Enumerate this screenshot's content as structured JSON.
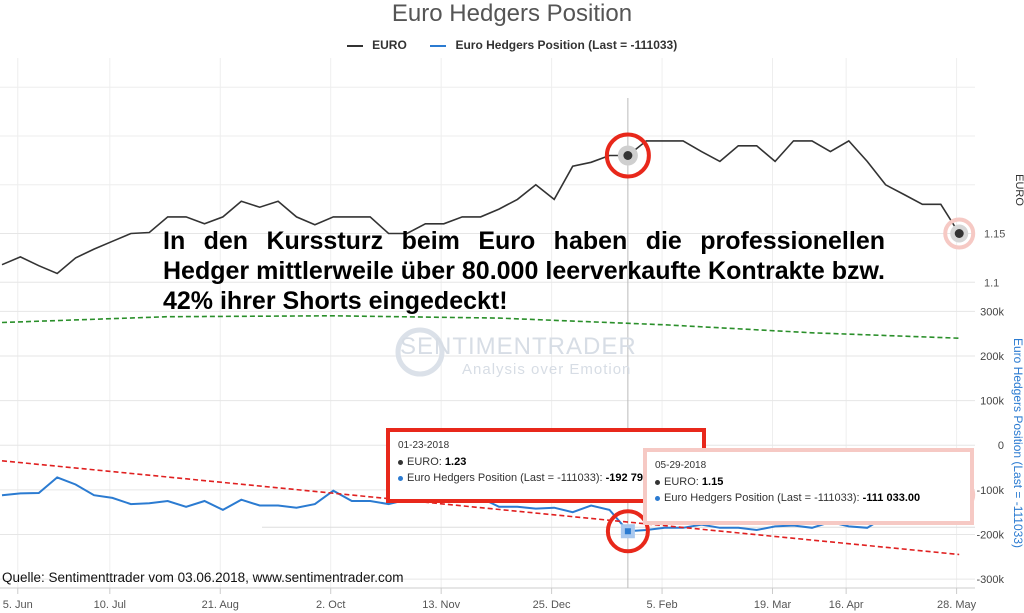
{
  "title": "Euro Hedgers Position",
  "legend": [
    {
      "name": "EURO",
      "color": "#333333"
    },
    {
      "name": "Euro Hedgers Position (Last = -111033)",
      "color": "#2b7bd1"
    }
  ],
  "headline": "In den Kurssturz beim Euro haben die professionellen Hedger mittlerweile über 80.000 leerverkaufte Kontrakte bzw. 42% ihrer Shorts eingedeckt!",
  "source": "Quelle: Sentimenttrader vom 03.06.2018, www.sentimentrader.com",
  "watermark": {
    "line1": "SENTIMENTRADER",
    "line2": "Analysis over Emotion"
  },
  "tooltips": [
    {
      "date": "01-23-2018",
      "euro_label": "EURO:",
      "euro_value": "1.23",
      "hedgers_label": "Euro Hedgers Position (Last = -111033):",
      "hedgers_value": "-192 790.00"
    },
    {
      "date": "05-29-2018",
      "euro_label": "EURO:",
      "euro_value": "1.15",
      "hedgers_label": "Euro Hedgers Position (Last = -111033):",
      "hedgers_value": "-111 033.00"
    }
  ],
  "chart_data": {
    "type": "line",
    "x_tick_labels": [
      "5. Jun",
      "10. Jul",
      "21. Aug",
      "2. Oct",
      "13. Nov",
      "25. Dec",
      "5. Feb",
      "19. Mar",
      "16. Apr",
      "28. May"
    ],
    "x_tick_dates": [
      "2017-06-05",
      "2017-07-10",
      "2017-08-21",
      "2017-10-02",
      "2017-11-13",
      "2017-12-25",
      "2018-02-05",
      "2018-03-19",
      "2018-04-16",
      "2018-05-28"
    ],
    "x_range": [
      "2017-05-30",
      "2018-06-04"
    ],
    "grid": true,
    "legend_position": "top-center",
    "upper_panel": {
      "ylabel": "EURO",
      "y_ticks": [
        1.1,
        1.15
      ],
      "ylim": [
        1.09,
        1.33
      ],
      "series": [
        {
          "name": "EURO",
          "color": "#333333",
          "x": [
            "2017-05-30",
            "2017-06-06",
            "2017-06-13",
            "2017-06-20",
            "2017-06-27",
            "2017-07-04",
            "2017-07-11",
            "2017-07-18",
            "2017-07-25",
            "2017-08-01",
            "2017-08-08",
            "2017-08-15",
            "2017-08-22",
            "2017-08-29",
            "2017-09-05",
            "2017-09-12",
            "2017-09-19",
            "2017-09-26",
            "2017-10-03",
            "2017-10-10",
            "2017-10-17",
            "2017-10-24",
            "2017-10-31",
            "2017-11-07",
            "2017-11-14",
            "2017-11-21",
            "2017-11-28",
            "2017-12-05",
            "2017-12-12",
            "2017-12-19",
            "2017-12-26",
            "2018-01-02",
            "2018-01-09",
            "2018-01-16",
            "2018-01-23",
            "2018-01-30",
            "2018-02-06",
            "2018-02-13",
            "2018-02-20",
            "2018-02-27",
            "2018-03-06",
            "2018-03-13",
            "2018-03-20",
            "2018-03-27",
            "2018-04-03",
            "2018-04-10",
            "2018-04-17",
            "2018-04-24",
            "2018-05-01",
            "2018-05-08",
            "2018-05-15",
            "2018-05-22",
            "2018-05-29"
          ],
          "y": [
            1.118,
            1.126,
            1.117,
            1.109,
            1.125,
            1.134,
            1.142,
            1.15,
            1.151,
            1.167,
            1.167,
            1.16,
            1.167,
            1.183,
            1.177,
            1.183,
            1.167,
            1.159,
            1.167,
            1.167,
            1.167,
            1.15,
            1.15,
            1.16,
            1.16,
            1.167,
            1.167,
            1.175,
            1.185,
            1.2,
            1.185,
            1.219,
            1.223,
            1.23,
            1.23,
            1.245,
            1.245,
            1.245,
            1.234,
            1.224,
            1.24,
            1.24,
            1.224,
            1.245,
            1.245,
            1.234,
            1.245,
            1.224,
            1.2,
            1.19,
            1.18,
            1.18,
            1.15
          ]
        }
      ]
    },
    "lower_panel": {
      "ylabel": "Euro Hedgers Position (Last = -111033)",
      "y_tick_labels": [
        "-300k",
        "-200k",
        "-100k",
        "0",
        "100k",
        "200k",
        "300k"
      ],
      "y_ticks": [
        -300000,
        -200000,
        -100000,
        0,
        100000,
        200000,
        300000
      ],
      "ylim": [
        -320000,
        330000
      ],
      "series": [
        {
          "name": "Euro Hedgers Position (Last = -111033)",
          "color": "#2b7bd1",
          "style": "solid",
          "x": [
            "2017-05-30",
            "2017-06-06",
            "2017-06-13",
            "2017-06-20",
            "2017-06-27",
            "2017-07-04",
            "2017-07-11",
            "2017-07-18",
            "2017-07-25",
            "2017-08-01",
            "2017-08-08",
            "2017-08-15",
            "2017-08-22",
            "2017-08-29",
            "2017-09-05",
            "2017-09-12",
            "2017-09-19",
            "2017-09-26",
            "2017-10-03",
            "2017-10-10",
            "2017-10-17",
            "2017-10-24",
            "2017-10-31",
            "2017-11-07",
            "2017-11-14",
            "2017-11-21",
            "2017-11-28",
            "2017-12-05",
            "2017-12-12",
            "2017-12-19",
            "2017-12-26",
            "2018-01-02",
            "2018-01-09",
            "2018-01-16",
            "2018-01-23",
            "2018-01-30",
            "2018-02-06",
            "2018-02-13",
            "2018-02-20",
            "2018-02-27",
            "2018-03-06",
            "2018-03-13",
            "2018-03-20",
            "2018-03-27",
            "2018-04-03",
            "2018-04-10",
            "2018-04-17",
            "2018-04-24",
            "2018-05-01",
            "2018-05-08",
            "2018-05-15",
            "2018-05-22",
            "2018-05-29"
          ],
          "y": [
            -112000,
            -108000,
            -107000,
            -72000,
            -88000,
            -112000,
            -118000,
            -132000,
            -130000,
            -125000,
            -138000,
            -125000,
            -145000,
            -122000,
            -135000,
            -135000,
            -140000,
            -132000,
            -102000,
            -125000,
            -125000,
            -132000,
            -122000,
            -115000,
            -98000,
            -112000,
            -118000,
            -138000,
            -138000,
            -142000,
            -140000,
            -150000,
            -135000,
            -145000,
            -192790,
            -190000,
            -185000,
            -185000,
            -178000,
            -185000,
            -185000,
            -190000,
            -182000,
            -180000,
            -185000,
            -172000,
            -182000,
            -185000,
            -160000,
            -145000,
            -140000,
            -128000,
            -111033
          ]
        },
        {
          "name": "",
          "color": "#2a8f2a",
          "style": "dashed",
          "x": [
            "2017-05-30",
            "2017-08-01",
            "2017-10-03",
            "2017-12-05",
            "2018-02-06",
            "2018-04-03",
            "2018-05-29"
          ],
          "y": [
            275000,
            288000,
            290000,
            285000,
            270000,
            252000,
            240000
          ]
        },
        {
          "name": "",
          "color": "#e02020",
          "style": "dashed",
          "x": [
            "2017-05-30",
            "2018-05-29"
          ],
          "y": [
            -35000,
            -245000
          ]
        }
      ]
    },
    "highlight_points": [
      {
        "x": "2018-01-23",
        "euro": 1.23,
        "hedgers": -192790
      },
      {
        "x": "2018-05-29",
        "euro": 1.15,
        "hedgers": -111033
      }
    ]
  }
}
